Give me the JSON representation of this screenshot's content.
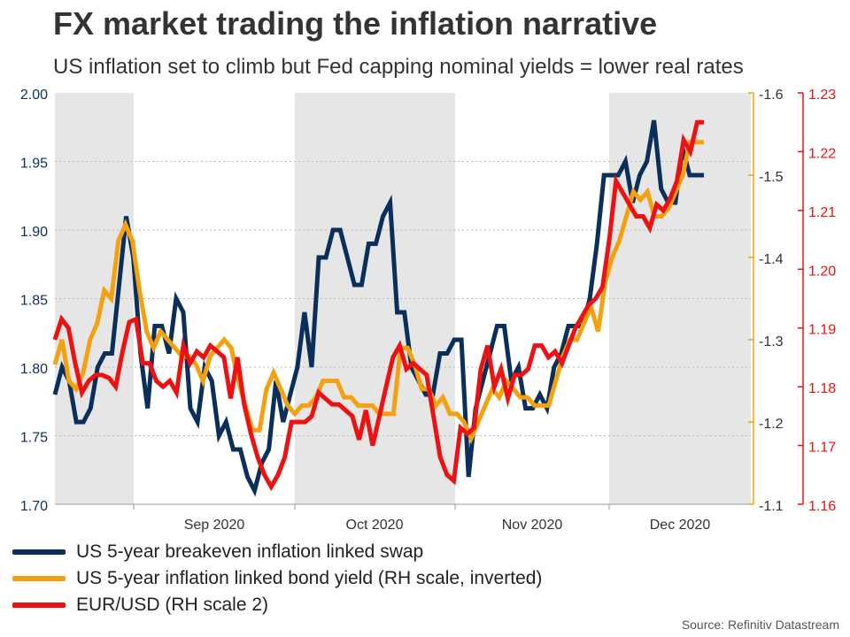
{
  "title": "FX market trading the inflation narrative",
  "subtitle": "US inflation set to climb but Fed capping nominal yields = lower real rates",
  "source": "Source: Refinitiv Datastream",
  "colors": {
    "navy": "#0b2f5b",
    "orange": "#f5a00f",
    "red": "#ee1111",
    "shade": "#e6e6e6",
    "grid": "#b8b8b8"
  },
  "chart_data": {
    "type": "line",
    "x_tick_labels": [
      "Sep 2020",
      "Oct 2020",
      "Nov 2020",
      "Dec 2020"
    ],
    "shaded_months": [
      "Aug 2020",
      "Oct 2020",
      "Dec 2020"
    ],
    "axes": {
      "left": {
        "ylim": [
          1.7,
          2.0
        ],
        "ticks": [
          "1.70",
          "1.75",
          "1.80",
          "1.85",
          "1.90",
          "1.95",
          "2.00"
        ]
      },
      "right1": {
        "ylim": [
          -1.1,
          -1.6
        ],
        "inverted": true,
        "ticks": [
          "-1.1",
          "-1.2",
          "-1.3",
          "-1.4",
          "-1.5",
          "-1.6"
        ]
      },
      "right2": {
        "ylim": [
          1.16,
          1.23
        ],
        "ticks": [
          "1.16",
          "1.17",
          "1.18",
          "1.19",
          "1.20",
          "1.21",
          "1.22",
          "1.23"
        ]
      }
    },
    "grid": true,
    "legend_position": "bottom-left",
    "series": [
      {
        "name": "US 5-year breakeven inflation linked swap",
        "axis": "left",
        "values": [
          1.78,
          1.8,
          1.79,
          1.76,
          1.76,
          1.77,
          1.8,
          1.81,
          1.81,
          1.86,
          1.91,
          1.88,
          1.81,
          1.77,
          1.83,
          1.83,
          1.81,
          1.85,
          1.84,
          1.77,
          1.76,
          1.8,
          1.79,
          1.75,
          1.76,
          1.74,
          1.74,
          1.72,
          1.71,
          1.73,
          1.74,
          1.79,
          1.76,
          1.78,
          1.8,
          1.84,
          1.8,
          1.88,
          1.88,
          1.9,
          1.9,
          1.88,
          1.86,
          1.86,
          1.89,
          1.89,
          1.91,
          1.92,
          1.84,
          1.84,
          1.8,
          1.79,
          1.78,
          1.78,
          1.81,
          1.81,
          1.82,
          1.82,
          1.72,
          1.77,
          1.79,
          1.81,
          1.83,
          1.83,
          1.79,
          1.8,
          1.77,
          1.77,
          1.78,
          1.77,
          1.8,
          1.81,
          1.83,
          1.83,
          1.83,
          1.85,
          1.89,
          1.94,
          1.94,
          1.94,
          1.95,
          1.92,
          1.94,
          1.95,
          1.98,
          1.93,
          1.92,
          1.92,
          1.96,
          1.94,
          1.94,
          1.94
        ]
      },
      {
        "name": "US 5-year inflation linked bond yield (RH scale, inverted)",
        "axis": "right1",
        "values": [
          -1.27,
          -1.3,
          -1.25,
          -1.24,
          -1.26,
          -1.3,
          -1.32,
          -1.36,
          -1.35,
          -1.42,
          -1.44,
          -1.42,
          -1.36,
          -1.31,
          -1.29,
          -1.31,
          -1.3,
          -1.29,
          -1.28,
          -1.28,
          -1.27,
          -1.25,
          -1.28,
          -1.29,
          -1.3,
          -1.29,
          -1.25,
          -1.22,
          -1.19,
          -1.19,
          -1.24,
          -1.26,
          -1.24,
          -1.22,
          -1.21,
          -1.22,
          -1.22,
          -1.23,
          -1.25,
          -1.25,
          -1.25,
          -1.23,
          -1.23,
          -1.22,
          -1.22,
          -1.22,
          -1.21,
          -1.21,
          -1.21,
          -1.29,
          -1.29,
          -1.27,
          -1.24,
          -1.24,
          -1.22,
          -1.23,
          -1.21,
          -1.21,
          -1.2,
          -1.18,
          -1.2,
          -1.22,
          -1.24,
          -1.23,
          -1.25,
          -1.24,
          -1.23,
          -1.23,
          -1.22,
          -1.22,
          -1.22,
          -1.25,
          -1.28,
          -1.3,
          -1.3,
          -1.32,
          -1.34,
          -1.31,
          -1.37,
          -1.4,
          -1.42,
          -1.45,
          -1.48,
          -1.47,
          -1.48,
          -1.45,
          -1.45,
          -1.46,
          -1.48,
          -1.5,
          -1.54,
          -1.54,
          -1.54
        ]
      },
      {
        "name": "EUR/USD (RH scale 2)",
        "axis": "right2",
        "values": [
          1.188,
          1.1915,
          1.19,
          1.184,
          1.179,
          1.181,
          1.182,
          1.182,
          1.1815,
          1.18,
          1.186,
          1.191,
          1.1915,
          1.184,
          1.184,
          1.181,
          1.18,
          1.181,
          1.179,
          1.187,
          1.184,
          1.186,
          1.185,
          1.187,
          1.186,
          1.185,
          1.178,
          1.185,
          1.177,
          1.172,
          1.168,
          1.165,
          1.163,
          1.165,
          1.168,
          1.174,
          1.174,
          1.174,
          1.175,
          1.179,
          1.178,
          1.177,
          1.177,
          1.176,
          1.175,
          1.171,
          1.176,
          1.17,
          1.175,
          1.18,
          1.185,
          1.187,
          1.183,
          1.184,
          1.183,
          1.182,
          1.175,
          1.168,
          1.165,
          1.164,
          1.173,
          1.172,
          1.173,
          1.183,
          1.187,
          1.18,
          1.183,
          1.178,
          1.182,
          1.182,
          1.183,
          1.187,
          1.187,
          1.185,
          1.186,
          1.184,
          1.187,
          1.19,
          1.192,
          1.194,
          1.195,
          1.197,
          1.205,
          1.215,
          1.213,
          1.211,
          1.209,
          1.209,
          1.207,
          1.211,
          1.21,
          1.212,
          1.215,
          1.222,
          1.22,
          1.225,
          1.225
        ]
      }
    ]
  }
}
